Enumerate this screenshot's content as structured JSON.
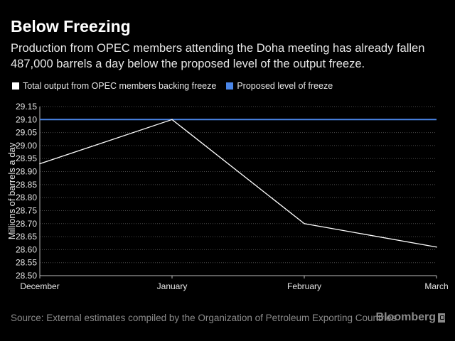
{
  "header": {
    "title": "Below Freezing",
    "subtitle": "Production from OPEC members attending the Doha meeting has already fallen 487,000 barrels a day below the proposed level of the output freeze."
  },
  "footer": {
    "source": "Source: External estimates compiled by the Organization of Petroleum Exporting Countries",
    "brand": "Bloomberg",
    "brand_icon": "bloomberg-logo-mark"
  },
  "colors": {
    "background": "#000000",
    "output_line": "#ffffff",
    "freeze_line": "#4a86e8",
    "grid": "#4a4a4a",
    "text_muted": "#8a8a8a"
  },
  "chart_data": {
    "type": "line",
    "categories": [
      "December",
      "January",
      "February",
      "March"
    ],
    "series": [
      {
        "name": "Total output from OPEC members backing freeze",
        "values": [
          28.93,
          29.1,
          28.7,
          28.61
        ],
        "color": "#ffffff"
      },
      {
        "name": "Proposed level of freeze",
        "values": [
          29.1,
          29.1,
          29.1,
          29.1
        ],
        "color": "#4a86e8"
      }
    ],
    "ylabel": "Millions of barrels a day",
    "ylim": [
      28.5,
      29.15
    ],
    "yticks": [
      "29.15",
      "29.10",
      "29.05",
      "29.00",
      "28.95",
      "28.90",
      "28.85",
      "28.80",
      "28.75",
      "28.70",
      "28.65",
      "28.60",
      "28.55",
      "28.50"
    ],
    "grid": true,
    "legend_position": "top-left"
  }
}
